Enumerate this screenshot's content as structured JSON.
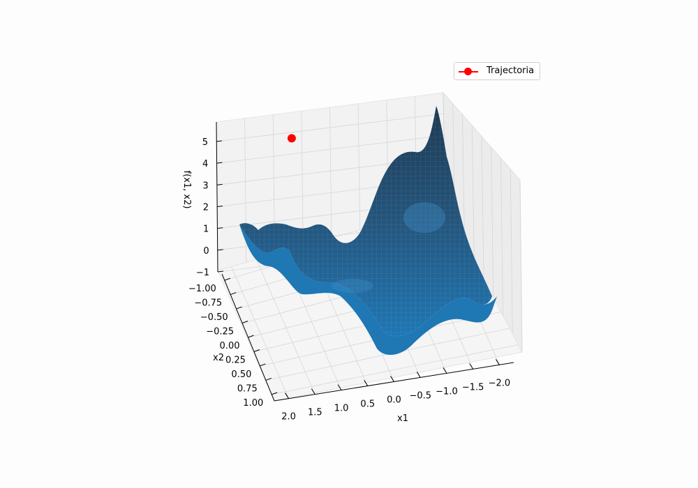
{
  "chart_data": {
    "type": "surface",
    "xlabel": "x1",
    "ylabel": "x2",
    "zlabel": "f(x1, x2)",
    "xlim": [
      -2,
      2
    ],
    "ylim": [
      -1,
      1
    ],
    "zlim": [
      -1,
      5.8
    ],
    "x_ticks": [
      "2.0",
      "1.5",
      "1.0",
      "0.5",
      "0.0",
      "−0.5",
      "−1.0",
      "−1.5",
      "−2.0"
    ],
    "y_ticks": [
      "−1.00",
      "−0.75",
      "−0.50",
      "−0.25",
      "0.00",
      "0.25",
      "0.50",
      "0.75",
      "1.00"
    ],
    "z_ticks": [
      "5",
      "4",
      "3",
      "2",
      "1",
      "0",
      "−1"
    ],
    "surface_color": "#1f77b4",
    "trajectory": {
      "name": "Trajectoria",
      "color": "#ff0000",
      "points": [
        {
          "x1": 0.7,
          "x2": -1.0,
          "z": 4.5
        }
      ]
    },
    "grid": true,
    "legend_position": "top-right"
  },
  "legend": {
    "label": "Trajectoria"
  }
}
